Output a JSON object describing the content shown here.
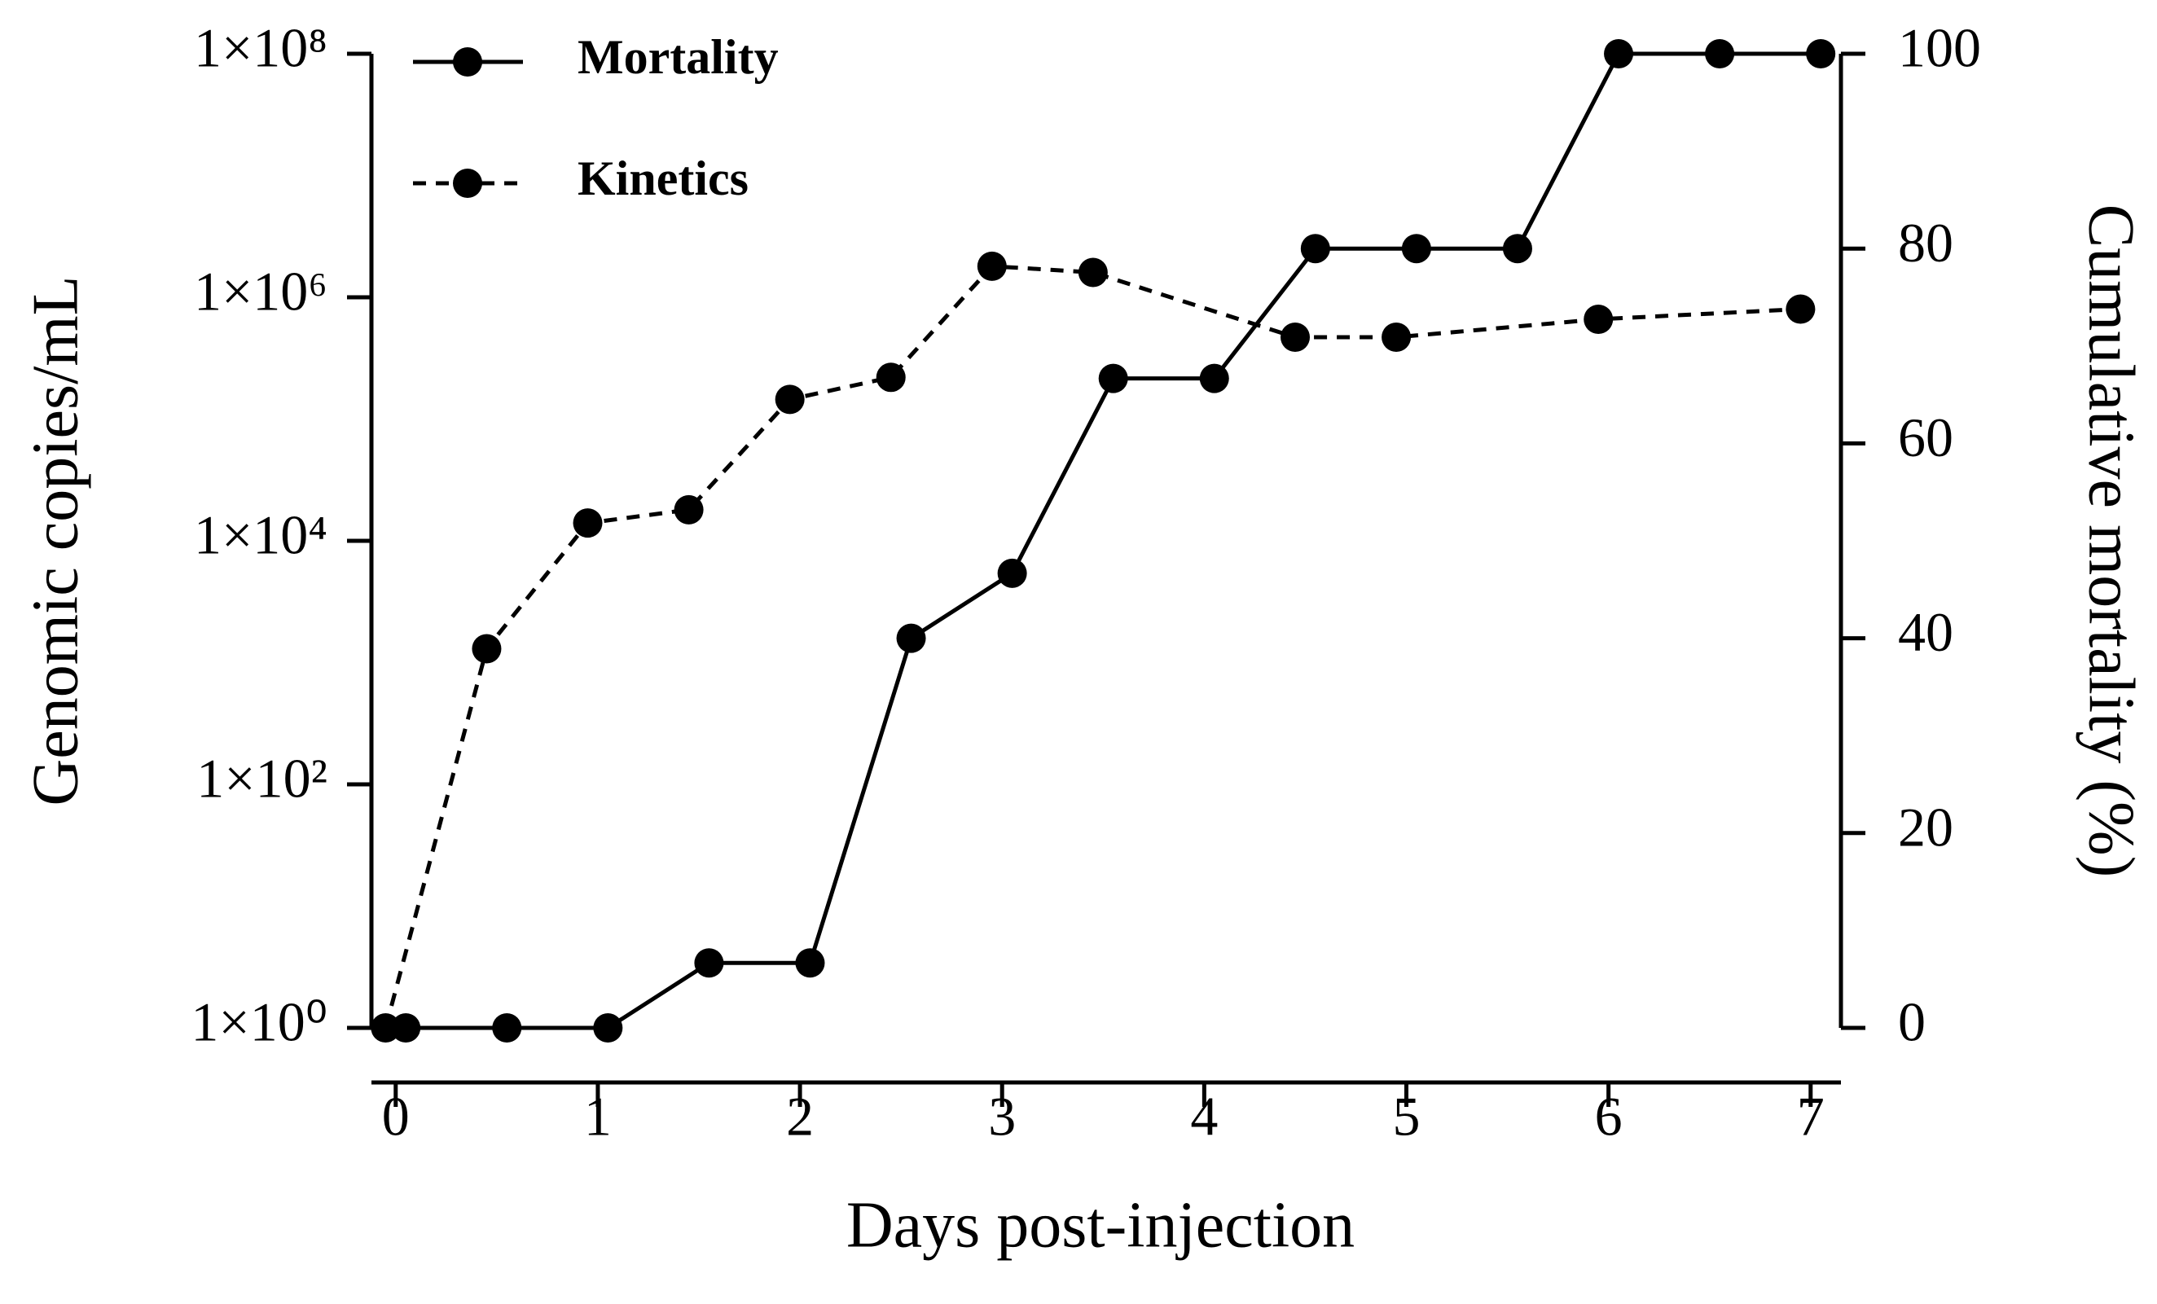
{
  "chart_data": {
    "type": "line",
    "xlabel": "Days post-injection",
    "ylabel": "Genomic copies/mL",
    "y2label": "Cumulative mortality (%)",
    "xlim": [
      -0.12,
      7.15
    ],
    "xticks": [
      0,
      1,
      2,
      3,
      4,
      5,
      6,
      7
    ],
    "ylim": [
      1,
      100000000
    ],
    "log_y": true,
    "yticks": [
      {
        "value": 1,
        "label": "1×10⁰"
      },
      {
        "value": 100,
        "label": "1×10²"
      },
      {
        "value": 10000,
        "label": "1×10⁴"
      },
      {
        "value": 1000000,
        "label": "1×10⁶"
      },
      {
        "value": 100000000,
        "label": "1×10⁸"
      }
    ],
    "y2lim": [
      0,
      100
    ],
    "y2ticks": [
      0,
      20,
      40,
      60,
      80,
      100
    ],
    "legend": "upper left",
    "series": [
      {
        "name": "Mortality",
        "color": "#000000",
        "dashed": false,
        "axis": "y2",
        "x": [
          0.05,
          0.55,
          1.05,
          1.55,
          2.05,
          2.55,
          3.05,
          3.55,
          4.05,
          4.55,
          5.05,
          5.55,
          6.05,
          6.55,
          7.05
        ],
        "values": [
          0,
          0,
          0,
          6.67,
          6.67,
          40,
          46.67,
          66.67,
          66.67,
          80,
          80,
          80,
          100,
          100,
          100
        ]
      },
      {
        "name": "Kinetics",
        "color": "#000000",
        "dashed": true,
        "axis": "y",
        "x": [
          -0.05,
          0.45,
          0.95,
          1.45,
          1.95,
          2.45,
          2.95,
          3.45,
          4.45,
          4.95,
          5.95,
          6.95
        ],
        "values": [
          1,
          1300,
          14000,
          18000,
          145000,
          220000,
          1800000,
          1600000,
          470000,
          470000,
          660000,
          800000
        ]
      }
    ]
  }
}
